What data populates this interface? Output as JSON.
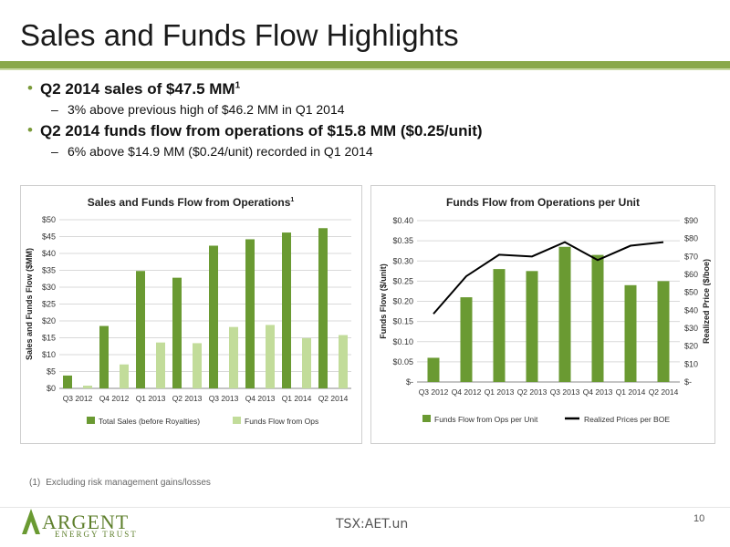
{
  "header": {
    "title": "Sales and Funds Flow Highlights"
  },
  "bullets": {
    "item1": "Q2 2014 sales of $47.5 MM",
    "item1_sup": "1",
    "item1_sub": "3% above previous high of $46.2 MM in Q1 2014",
    "item2": "Q2 2014 funds flow from operations of $15.8 MM ($0.25/unit)",
    "item2_sub": "6% above $14.9 MM ($0.24/unit) recorded in Q1 2014"
  },
  "footnote": {
    "num": "(1)",
    "text": "Excluding risk management gains/losses"
  },
  "footer": {
    "ticker": "TSX:AET.un",
    "page": "10",
    "logo_name": "Argent",
    "logo_sub": "ENERGY TRUST"
  },
  "colors": {
    "dark_green": "#6a9a32",
    "light_green": "#c2dc9a",
    "line": "#000000",
    "accent": "#8aa84a"
  },
  "chart_data": [
    {
      "type": "bar",
      "title": "Sales and Funds Flow from Operations",
      "title_sup": "1",
      "ylabel": "Sales and Funds Flow ($MM)",
      "xlabel": "",
      "ylim": [
        0,
        50
      ],
      "yticks": [
        "$0",
        "$5",
        "$10",
        "$15",
        "$20",
        "$25",
        "$30",
        "$35",
        "$40",
        "$45",
        "$50"
      ],
      "categories": [
        "Q3 2012",
        "Q4 2012",
        "Q1 2013",
        "Q2 2013",
        "Q3 2013",
        "Q4 2013",
        "Q1 2014",
        "Q2 2014"
      ],
      "series": [
        {
          "name": "Total Sales (before Royalties)",
          "color": "#6a9a32",
          "values": [
            3.8,
            18.5,
            34.8,
            32.8,
            42.3,
            44.2,
            46.2,
            47.5
          ]
        },
        {
          "name": "Funds Flow from Ops",
          "color": "#c2dc9a",
          "values": [
            0.8,
            7.1,
            13.6,
            13.4,
            18.2,
            18.8,
            14.9,
            15.8
          ]
        }
      ],
      "legend": "bottom",
      "grid": true
    },
    {
      "type": "bar",
      "title": "Funds Flow from Operations per Unit",
      "ylabel": "Funds Flow ($/unit)",
      "y2label": "Realized Price ($/boe)",
      "ylim": [
        0,
        0.4
      ],
      "yticks": [
        "$-",
        "$0.05",
        "$0.10",
        "$0.15",
        "$0.20",
        "$0.25",
        "$0.30",
        "$0.35",
        "$0.40"
      ],
      "y2lim": [
        0,
        90
      ],
      "y2ticks": [
        "$-",
        "$10",
        "$20",
        "$30",
        "$40",
        "$50",
        "$60",
        "$70",
        "$80",
        "$90"
      ],
      "categories": [
        "Q3 2012",
        "Q4 2012",
        "Q1 2013",
        "Q2 2013",
        "Q3 2013",
        "Q4 2013",
        "Q1 2014",
        "Q2 2014"
      ],
      "series": [
        {
          "name": "Funds Flow from Ops per Unit",
          "type": "bar",
          "axis": "left",
          "color": "#6a9a32",
          "values": [
            0.06,
            0.21,
            0.28,
            0.275,
            0.335,
            0.315,
            0.24,
            0.25
          ]
        },
        {
          "name": "Realized Prices per BOE",
          "type": "line",
          "axis": "right",
          "color": "#000000",
          "values": [
            38,
            59,
            71,
            70,
            78,
            68,
            76,
            78
          ]
        }
      ],
      "legend": "bottom",
      "grid": true
    }
  ]
}
